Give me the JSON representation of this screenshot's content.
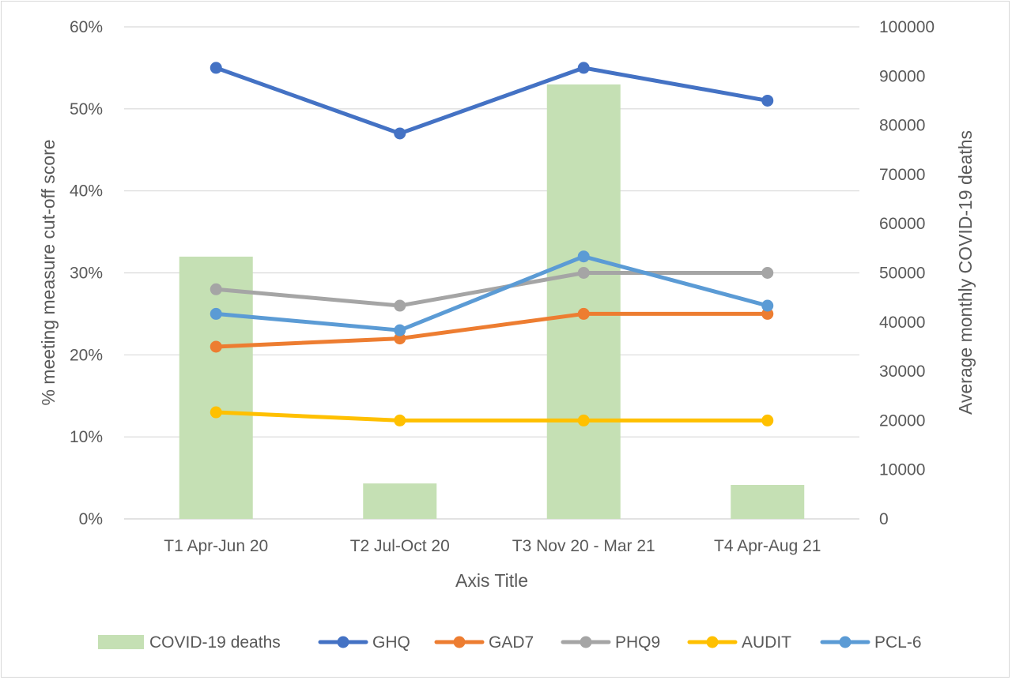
{
  "chart_data": {
    "type": "bar+line",
    "categories": [
      "T1 Apr-Jun 20",
      "T2 Jul-Oct 20",
      "T3 Nov 20 - Mar 21",
      "T4 Apr-Aug 21"
    ],
    "xlabel": "Axis Title",
    "ylabel_left": "% meeting measure cut-off score",
    "ylabel_right": "Average monthly COVID-19 deaths",
    "ylim_left": [
      0,
      60
    ],
    "ylim_right": [
      0,
      100000
    ],
    "yticks_left": [
      "0%",
      "10%",
      "20%",
      "30%",
      "40%",
      "50%",
      "60%"
    ],
    "yticks_right": [
      "0",
      "10000",
      "20000",
      "30000",
      "40000",
      "50000",
      "60000",
      "70000",
      "80000",
      "90000",
      "100000"
    ],
    "grid": "horizontal",
    "legend_position": "bottom",
    "bar_series": {
      "name": "COVID-19 deaths",
      "axis": "right",
      "color": "#c5e0b4",
      "values": [
        53300,
        7200,
        88300,
        6900
      ]
    },
    "line_series": [
      {
        "name": "GHQ",
        "axis": "left",
        "color": "#4472c4",
        "values": [
          55,
          47,
          55,
          51
        ]
      },
      {
        "name": "GAD7",
        "axis": "left",
        "color": "#ed7d31",
        "values": [
          21,
          22,
          25,
          25
        ]
      },
      {
        "name": "PHQ9",
        "axis": "left",
        "color": "#a5a5a5",
        "values": [
          28,
          26,
          30,
          30
        ]
      },
      {
        "name": "AUDIT",
        "axis": "left",
        "color": "#ffc000",
        "values": [
          13,
          12,
          12,
          12
        ]
      },
      {
        "name": "PCL-6",
        "axis": "left",
        "color": "#5b9bd5",
        "values": [
          25,
          23,
          32,
          26
        ]
      }
    ]
  }
}
